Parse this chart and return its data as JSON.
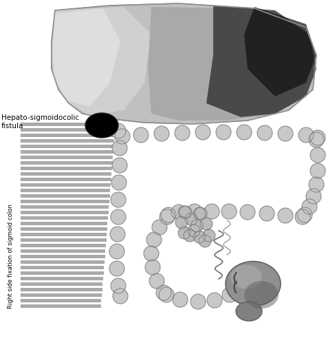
{
  "bg_color": "#ffffff",
  "colon_fill": "#c8c8c8",
  "colon_edge": "#808080",
  "liver_base": "#b0b0b0",
  "liver_dark": "#202020",
  "fistula_color": "#000000",
  "stripe_color": "#aaaaaa",
  "rectum_color": "#909090",
  "label1": "Hepato-sigmoidocolic\nfistula",
  "label2": "Right side fixation of sigmoid colon",
  "colon_r": 11,
  "fig_w": 4.74,
  "fig_h": 4.98,
  "dpi": 100
}
